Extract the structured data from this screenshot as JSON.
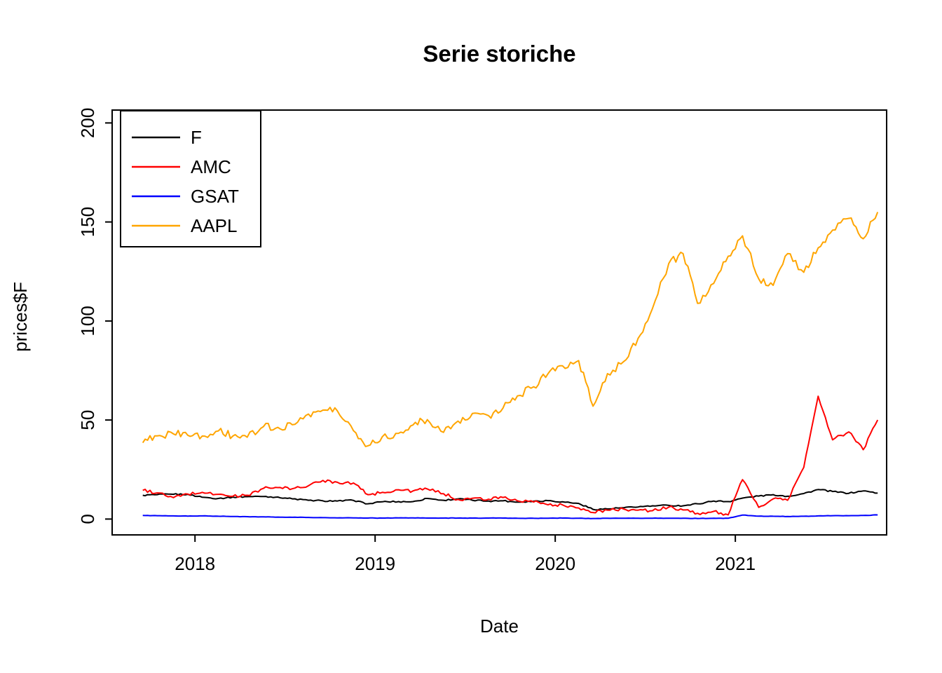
{
  "chart_data": {
    "type": "line",
    "title": "Serie storiche",
    "xlabel": "Date",
    "ylabel": "prices$F",
    "grid": false,
    "legend_position": "top-left",
    "background": "#FFFFFF",
    "xlim": [
      2017.54,
      2021.84
    ],
    "ylim": [
      -8,
      206.5
    ],
    "xticks": [
      2018,
      2019,
      2020,
      2021
    ],
    "yticks": [
      0,
      50,
      100,
      150,
      200
    ],
    "x": [
      2017.71,
      2017.79,
      2017.88,
      2017.96,
      2018.04,
      2018.13,
      2018.21,
      2018.29,
      2018.38,
      2018.46,
      2018.54,
      2018.63,
      2018.71,
      2018.79,
      2018.88,
      2018.96,
      2019.04,
      2019.13,
      2019.21,
      2019.29,
      2019.38,
      2019.46,
      2019.54,
      2019.63,
      2019.71,
      2019.79,
      2019.88,
      2019.96,
      2020.04,
      2020.13,
      2020.21,
      2020.29,
      2020.38,
      2020.46,
      2020.54,
      2020.63,
      2020.71,
      2020.79,
      2020.88,
      2020.96,
      2021.04,
      2021.13,
      2021.21,
      2021.29,
      2021.38,
      2021.46,
      2021.54,
      2021.63,
      2021.71,
      2021.79
    ],
    "series": [
      {
        "name": "F",
        "color": "#000000",
        "jitter": 0.35,
        "values": [
          12.0,
          12.3,
          12.5,
          12.5,
          11.0,
          10.4,
          11.1,
          11.3,
          11.4,
          11.1,
          10.2,
          9.5,
          9.2,
          9.1,
          9.4,
          7.7,
          8.7,
          8.8,
          8.8,
          10.4,
          9.5,
          10.2,
          9.5,
          9.1,
          9.2,
          8.6,
          9.0,
          9.3,
          8.7,
          7.9,
          4.9,
          5.1,
          5.7,
          6.1,
          6.7,
          6.9,
          6.7,
          7.7,
          9.1,
          8.8,
          10.6,
          11.6,
          12.3,
          11.5,
          12.9,
          14.9,
          13.9,
          13.0,
          14.2,
          13.1
        ]
      },
      {
        "name": "AMC",
        "color": "#FF0000",
        "jitter": 0.8,
        "values": [
          14.5,
          13.2,
          10.8,
          12.6,
          13.5,
          12.5,
          11.5,
          12.0,
          15.5,
          15.9,
          15.3,
          16.8,
          19.5,
          18.6,
          18.2,
          12.3,
          13.5,
          14.8,
          14.2,
          15.2,
          12.8,
          9.9,
          10.5,
          10.0,
          10.9,
          9.2,
          8.6,
          7.2,
          7.2,
          5.6,
          3.3,
          4.5,
          5.1,
          4.5,
          4.2,
          6.0,
          4.6,
          2.9,
          3.9,
          2.1,
          19.9,
          5.9,
          10.2,
          9.5,
          26.1,
          62.0,
          40.0,
          44.0,
          35.0,
          50.0
        ]
      },
      {
        "name": "GSAT",
        "color": "#0000FF",
        "jitter": 0.08,
        "values": [
          1.8,
          1.7,
          1.6,
          1.5,
          1.6,
          1.4,
          1.3,
          1.2,
          1.1,
          1.0,
          0.9,
          0.8,
          0.7,
          0.6,
          0.6,
          0.5,
          0.5,
          0.6,
          0.6,
          0.5,
          0.5,
          0.5,
          0.5,
          0.5,
          0.5,
          0.4,
          0.4,
          0.4,
          0.5,
          0.4,
          0.3,
          0.4,
          0.4,
          0.4,
          0.4,
          0.4,
          0.4,
          0.3,
          0.4,
          0.4,
          2.0,
          1.5,
          1.4,
          1.3,
          1.4,
          1.6,
          1.7,
          1.7,
          1.8,
          2.1
        ]
      },
      {
        "name": "AAPL",
        "color": "#FFA500",
        "jitter": 2.0,
        "values": [
          38.5,
          42.0,
          43.0,
          42.3,
          41.9,
          44.5,
          41.9,
          41.3,
          46.7,
          46.3,
          47.6,
          53.0,
          55.0,
          54.7,
          44.6,
          37.0,
          41.6,
          43.3,
          47.5,
          50.2,
          43.8,
          49.5,
          53.3,
          52.2,
          56.0,
          62.2,
          66.8,
          73.4,
          77.4,
          80.0,
          57.0,
          73.4,
          79.5,
          91.2,
          106.3,
          129.0,
          134.0,
          108.9,
          119.0,
          132.7,
          143.0,
          121.3,
          118.0,
          134.0,
          124.6,
          136.9,
          145.9,
          151.8,
          141.5,
          155.0
        ]
      }
    ]
  }
}
